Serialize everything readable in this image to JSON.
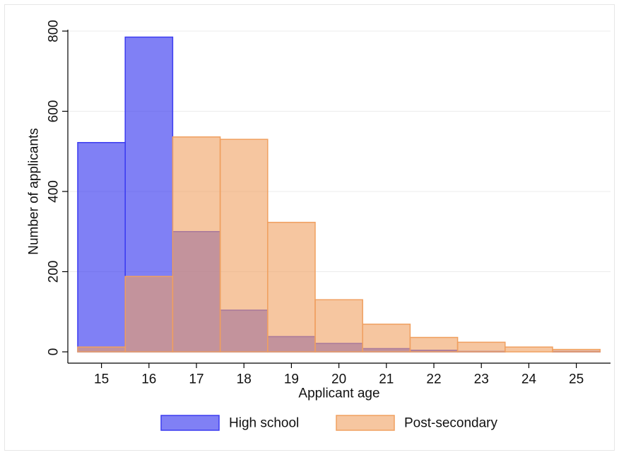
{
  "chart_data": {
    "type": "bar",
    "categories": [
      "15",
      "16",
      "17",
      "18",
      "19",
      "20",
      "21",
      "22",
      "23",
      "24",
      "25"
    ],
    "series": [
      {
        "name": "High school",
        "values": [
          522,
          785,
          300,
          104,
          38,
          21,
          8,
          4,
          1,
          0,
          1
        ],
        "color": "#3c3cf0",
        "fill_opacity": 0.65
      },
      {
        "name": "Post-secondary",
        "values": [
          12,
          188,
          536,
          530,
          323,
          130,
          69,
          36,
          24,
          12,
          6
        ],
        "color": "#f0a060",
        "fill_opacity": 0.6
      }
    ],
    "xlabel": "Applicant age",
    "ylabel": "Number of applicants",
    "yticks": [
      0,
      200,
      400,
      600,
      800
    ],
    "ylim": [
      0,
      800
    ],
    "overlaid": true,
    "grid": true,
    "legend_position": "bottom"
  }
}
